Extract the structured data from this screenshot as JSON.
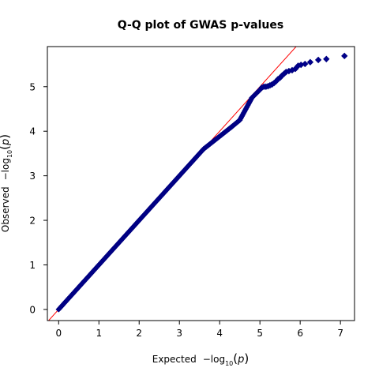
{
  "chart_data": {
    "type": "scatter",
    "title": "Q-Q plot of GWAS p-values",
    "xlabel": {
      "prefix": "Expected",
      "minus": "−log",
      "sub": "10",
      "open": "(",
      "var": "p",
      "close": ")"
    },
    "ylabel": {
      "prefix": "Observed",
      "minus": "−log",
      "sub": "10",
      "open": "(",
      "var": "p",
      "close": ")"
    },
    "xlim": [
      -0.28,
      7.35
    ],
    "ylim": [
      -0.25,
      5.9
    ],
    "xticks": [
      0,
      1,
      2,
      3,
      4,
      5,
      6,
      7
    ],
    "yticks": [
      0,
      1,
      2,
      3,
      4,
      5
    ],
    "grid": false,
    "reference_line": {
      "from": [
        -0.3,
        -0.3
      ],
      "to": [
        6.0,
        6.0
      ],
      "color": "#ff0000"
    },
    "marker": {
      "shape": "diamond",
      "fill": "#00008b",
      "stroke": "#000080"
    },
    "series": [
      {
        "dense_segments": [
          {
            "x": [
              0.0,
              3.6
            ],
            "y": [
              0.0,
              3.6
            ]
          },
          {
            "x": [
              3.6,
              4.3
            ],
            "y": [
              3.6,
              4.1
            ]
          },
          {
            "x": [
              4.3,
              4.5
            ],
            "y": [
              4.1,
              4.25
            ]
          },
          {
            "x": [
              4.5,
              4.8
            ],
            "y": [
              4.25,
              4.75
            ]
          },
          {
            "x": [
              4.8,
              5.0
            ],
            "y": [
              4.75,
              4.93
            ]
          }
        ],
        "points": [
          {
            "x": 5.05,
            "y": 4.98
          },
          {
            "x": 5.1,
            "y": 5.0
          },
          {
            "x": 5.15,
            "y": 5.0
          },
          {
            "x": 5.2,
            "y": 5.01
          },
          {
            "x": 5.25,
            "y": 5.03
          },
          {
            "x": 5.3,
            "y": 5.05
          },
          {
            "x": 5.35,
            "y": 5.08
          },
          {
            "x": 5.4,
            "y": 5.12
          },
          {
            "x": 5.45,
            "y": 5.17
          },
          {
            "x": 5.5,
            "y": 5.2
          },
          {
            "x": 5.55,
            "y": 5.25
          },
          {
            "x": 5.6,
            "y": 5.29
          },
          {
            "x": 5.65,
            "y": 5.33
          },
          {
            "x": 5.72,
            "y": 5.35
          },
          {
            "x": 5.8,
            "y": 5.37
          },
          {
            "x": 5.88,
            "y": 5.4
          },
          {
            "x": 5.95,
            "y": 5.47
          },
          {
            "x": 6.02,
            "y": 5.49
          },
          {
            "x": 6.12,
            "y": 5.51
          },
          {
            "x": 6.25,
            "y": 5.55
          },
          {
            "x": 6.45,
            "y": 5.6
          },
          {
            "x": 6.65,
            "y": 5.62
          },
          {
            "x": 7.1,
            "y": 5.69
          }
        ]
      }
    ]
  }
}
